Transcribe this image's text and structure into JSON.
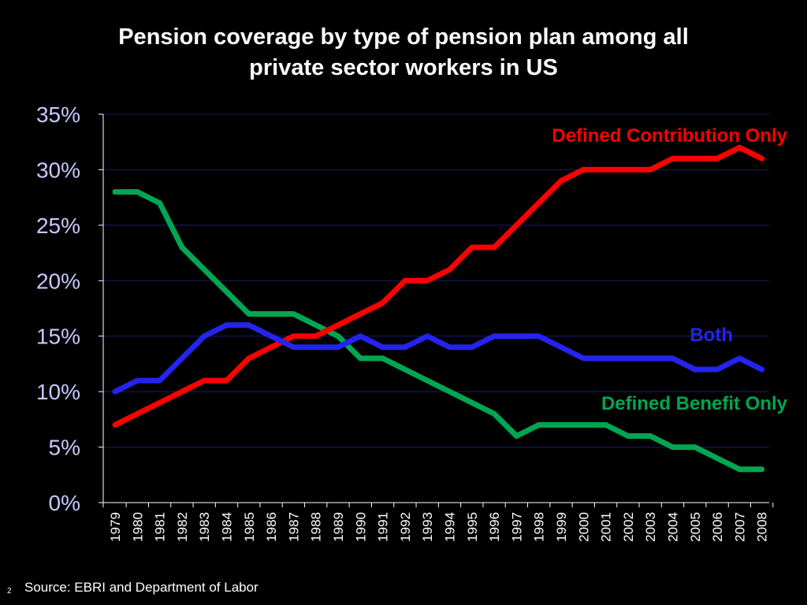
{
  "slide": {
    "title_line1": "Pension coverage by type of pension plan among all",
    "title_line2": "private sector workers in US",
    "source": "Source: EBRI and Department of Labor",
    "page_number": "2"
  },
  "chart_data": {
    "type": "line",
    "title": "Pension coverage by type of pension plan among all private sector workers in US",
    "xlabel": "",
    "ylabel": "",
    "x": [
      "1979",
      "1980",
      "1981",
      "1982",
      "1983",
      "1984",
      "1985",
      "1986",
      "1987",
      "1988",
      "1989",
      "1990",
      "1991",
      "1992",
      "1993",
      "1994",
      "1995",
      "1996",
      "1997",
      "1998",
      "1999",
      "2000",
      "2001",
      "2002",
      "2003",
      "2004",
      "2005",
      "2006",
      "2007",
      "2008"
    ],
    "ylim": [
      0,
      35
    ],
    "yticks": [
      0,
      5,
      10,
      15,
      20,
      25,
      30,
      35
    ],
    "ytick_labels": [
      "0%",
      "5%",
      "10%",
      "15%",
      "20%",
      "25%",
      "30%",
      "35%"
    ],
    "grid": true,
    "legend": "inline labels near series ends (right)",
    "series": [
      {
        "name": "Defined Contribution Only",
        "color": "#ff0000",
        "values": [
          7,
          8,
          9,
          10,
          11,
          11,
          13,
          14,
          15,
          15,
          16,
          17,
          18,
          20,
          20,
          21,
          23,
          23,
          25,
          27,
          29,
          30,
          30,
          30,
          30,
          31,
          31,
          31,
          32,
          31
        ]
      },
      {
        "name": "Both",
        "color": "#2424ee",
        "values": [
          10,
          11,
          11,
          13,
          15,
          16,
          16,
          15,
          14,
          14,
          14,
          15,
          14,
          14,
          15,
          14,
          14,
          15,
          15,
          15,
          14,
          13,
          13,
          13,
          13,
          13,
          12,
          12,
          13,
          12
        ]
      },
      {
        "name": "Defined Benefit Only",
        "color": "#00a651",
        "values": [
          28,
          28,
          27,
          23,
          21,
          19,
          17,
          17,
          17,
          16,
          15,
          13,
          13,
          12,
          11,
          10,
          9,
          8,
          6,
          7,
          7,
          7,
          7,
          6,
          6,
          5,
          5,
          4,
          3,
          3
        ]
      }
    ],
    "colors": {
      "background": "#000000",
      "axis": "#ffffff",
      "gridline": "#1a1a6e",
      "tick_label": "#ffffff",
      "ytick_label": "#c8c8ff"
    }
  }
}
